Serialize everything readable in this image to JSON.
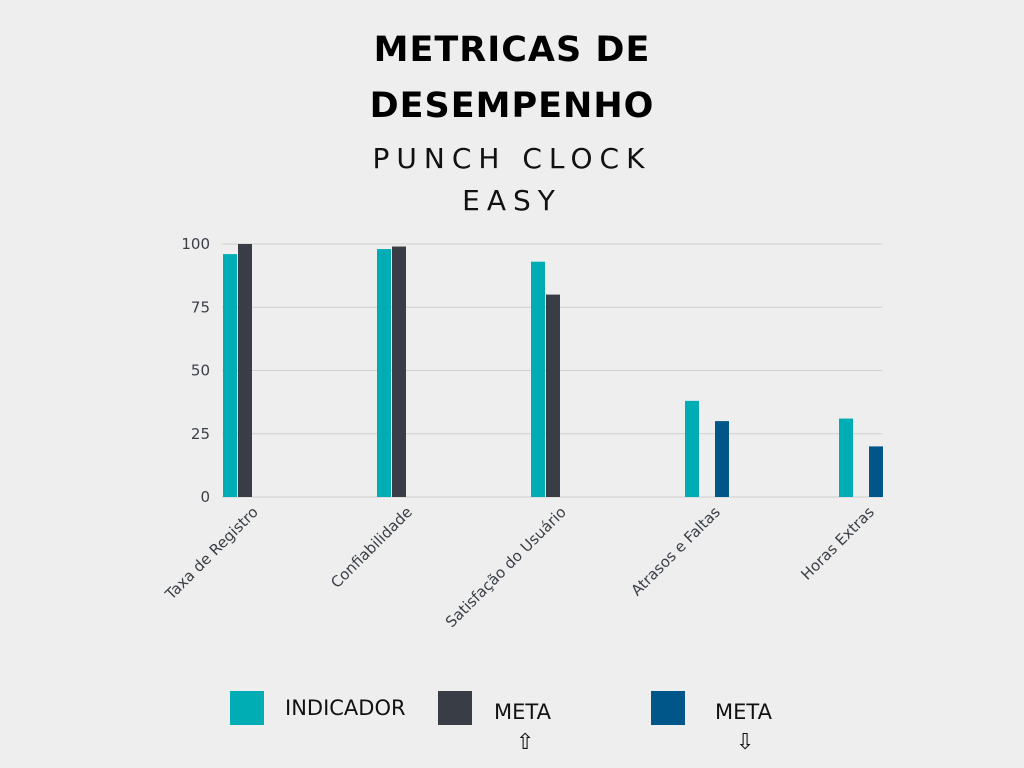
{
  "title": {
    "line1": "METRICAS DE",
    "line2": "DESEMPENHO",
    "sub1": "PUNCH CLOCK",
    "sub2": "EASY"
  },
  "legend": [
    {
      "label": "INDICADOR",
      "color": "#00adb5",
      "arrow": ""
    },
    {
      "label": "META",
      "color": "#393e46",
      "arrow": "⇧"
    },
    {
      "label": "META",
      "color": "#005689",
      "arrow": "⇩"
    }
  ],
  "colors": {
    "indicador": "#00adb5",
    "meta_up": "#393e46",
    "meta_down": "#005689",
    "grid": "#cfcfcf",
    "background": "#eeeeee"
  },
  "chart_data": {
    "type": "bar",
    "categories": [
      "Taxa de Registro",
      "Confiabilidade",
      "Satisfação do Usuário",
      "Atrasos e Faltas",
      "Horas Extras"
    ],
    "series": [
      {
        "name": "INDICADOR",
        "values": [
          96,
          98,
          93,
          38,
          31
        ]
      },
      {
        "name": "META",
        "values": [
          100,
          99,
          80,
          30,
          20
        ]
      }
    ],
    "meta_direction": [
      "up",
      "up",
      "up",
      "down",
      "down"
    ],
    "yticks": [
      0,
      25,
      50,
      75,
      100
    ],
    "ylim": [
      0,
      100
    ],
    "grid": true,
    "legend_position": "bottom"
  }
}
